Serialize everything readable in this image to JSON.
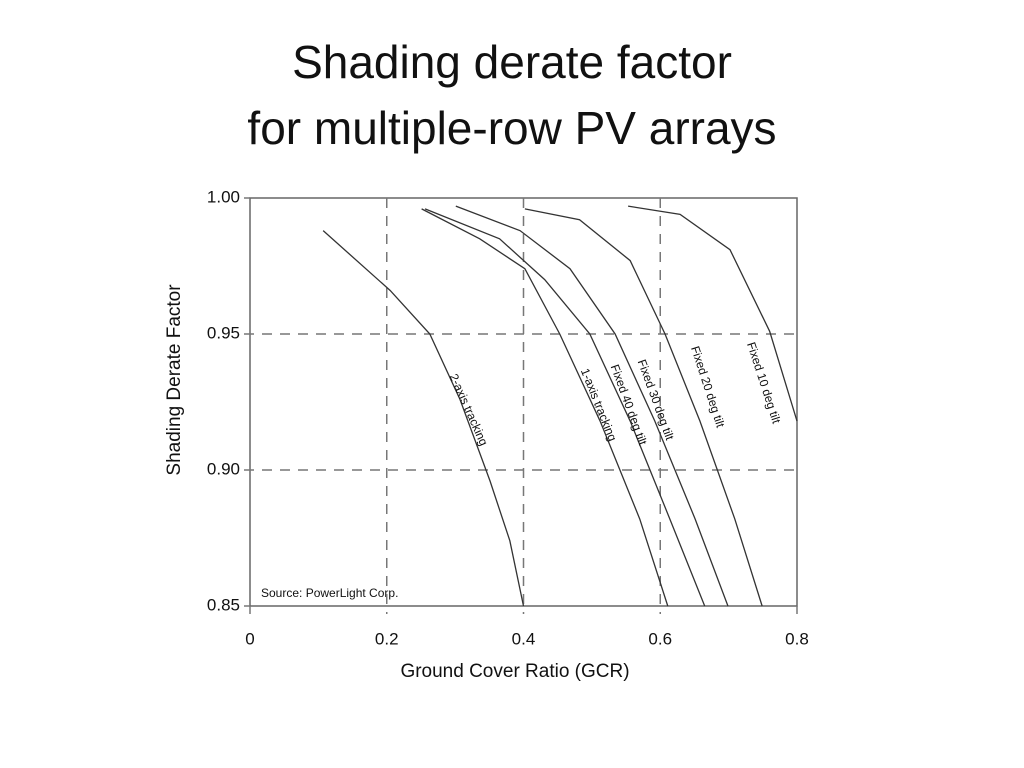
{
  "chart_data": {
    "type": "line",
    "title": [
      "Shading derate factor",
      "for multiple-row PV arrays"
    ],
    "x_label": "Ground Cover Ratio (GCR)",
    "y_label": "Shading Derate Factor",
    "annotation": "Source: PowerLight Corp.",
    "xlim": [
      0,
      0.8
    ],
    "xticks": [
      0,
      0.2,
      0.4,
      0.6,
      0.8
    ],
    "ylim": [
      0.85,
      1.0
    ],
    "yticks": [
      0.85,
      {
        "value": 0.9,
        "label": "0.90"
      },
      0.95,
      {
        "value": 1.0,
        "label": "1.00"
      }
    ],
    "grid": true,
    "series": [
      {
        "name": "2-axis tracking",
        "color": "#333333",
        "x": [
          0.107,
          0.205,
          0.263,
          0.307,
          0.351,
          0.38,
          0.4
        ],
        "values": [
          0.988,
          0.966,
          0.95,
          0.926,
          0.896,
          0.874,
          0.85
        ]
      },
      {
        "name": "1-axis tracking",
        "color": "#333333",
        "x": [
          0.251,
          0.336,
          0.402,
          0.453,
          0.512,
          0.57,
          0.611
        ],
        "values": [
          0.996,
          0.985,
          0.974,
          0.95,
          0.918,
          0.882,
          0.85
        ]
      },
      {
        "name": "Fixed 40 deg tilt",
        "color": "#333333",
        "x": [
          0.256,
          0.365,
          0.431,
          0.497,
          0.556,
          0.614,
          0.665
        ],
        "values": [
          0.996,
          0.985,
          0.97,
          0.95,
          0.918,
          0.882,
          0.85
        ]
      },
      {
        "name": "Fixed 30 deg tilt",
        "color": "#333333",
        "x": [
          0.301,
          0.395,
          0.468,
          0.534,
          0.592,
          0.651,
          0.699
        ],
        "values": [
          0.997,
          0.988,
          0.974,
          0.95,
          0.918,
          0.882,
          0.85
        ]
      },
      {
        "name": "Fixed 20 deg tilt",
        "color": "#333333",
        "x": [
          0.402,
          0.482,
          0.556,
          0.607,
          0.658,
          0.709,
          0.749
        ],
        "values": [
          0.996,
          0.992,
          0.977,
          0.95,
          0.918,
          0.882,
          0.85
        ]
      },
      {
        "name": "Fixed 10 deg tilt",
        "color": "#333333",
        "x": [
          0.553,
          0.629,
          0.702,
          0.76,
          0.8
        ],
        "values": [
          0.997,
          0.994,
          0.981,
          0.951,
          0.918
        ]
      }
    ]
  }
}
